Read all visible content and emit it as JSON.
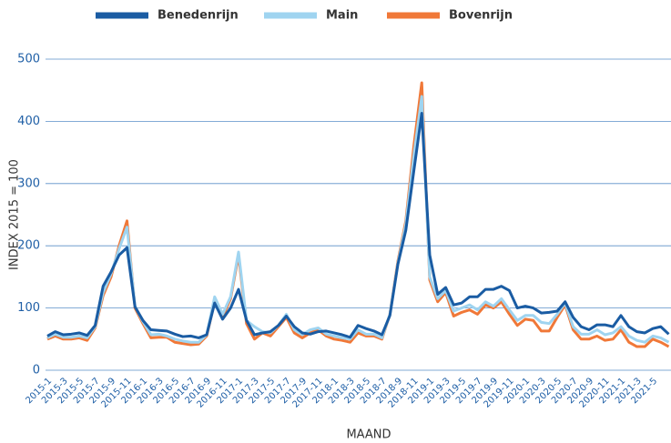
{
  "chart_data": {
    "type": "line",
    "x_label": "MAAND",
    "y_label": "INDEX 2015 = 100",
    "categories": [
      "2015-1",
      null,
      "2015-3",
      null,
      "2015-5",
      null,
      "2015-7",
      null,
      "2015-9",
      null,
      "2015-11",
      null,
      "2016-1",
      null,
      "2016-3",
      null,
      "2016-5",
      null,
      "2016-7",
      null,
      "2016-9",
      null,
      "2016-11",
      null,
      "2017-1",
      null,
      "2017-3",
      null,
      "2017-5",
      null,
      "2017-7",
      null,
      "2017-9",
      null,
      "2017-11",
      null,
      "2018-1",
      null,
      "2018-3",
      null,
      "2018-5",
      null,
      "2018-7",
      null,
      "2018-9",
      null,
      "2018-11",
      null,
      "2019-1",
      null,
      "2019-3",
      null,
      "2019-5",
      null,
      "2019-7",
      null,
      "2019-9",
      null,
      "2019-11",
      null,
      "2020-1",
      null,
      "2020-3",
      null,
      "2020-5",
      null,
      "2020-7",
      null,
      "2020-9",
      null,
      "2020-11",
      null,
      "2021-1",
      null,
      "2021-3",
      null,
      "2021-5",
      null,
      null
    ],
    "series": [
      {
        "name": "Benedenrijn",
        "color": "#1a5ca3",
        "values": [
          55,
          62,
          57,
          58,
          60,
          56,
          72,
          135,
          158,
          185,
          197,
          102,
          80,
          65,
          64,
          63,
          58,
          54,
          55,
          52,
          57,
          108,
          82,
          100,
          130,
          80,
          57,
          60,
          62,
          72,
          87,
          70,
          60,
          58,
          62,
          63,
          60,
          57,
          53,
          72,
          67,
          63,
          57,
          88,
          170,
          225,
          320,
          413,
          185,
          122,
          133,
          105,
          108,
          118,
          118,
          130,
          130,
          135,
          128,
          100,
          103,
          100,
          92,
          93,
          95,
          110,
          85,
          70,
          65,
          73,
          73,
          70,
          88,
          70,
          62,
          60,
          67,
          70,
          58
        ]
      },
      {
        "name": "Main",
        "color": "#9fd4f0",
        "values": [
          52,
          58,
          53,
          53,
          55,
          52,
          70,
          125,
          155,
          195,
          230,
          103,
          78,
          57,
          58,
          55,
          50,
          47,
          45,
          45,
          57,
          118,
          90,
          118,
          190,
          80,
          70,
          62,
          60,
          72,
          90,
          65,
          57,
          65,
          68,
          58,
          55,
          52,
          50,
          65,
          58,
          58,
          52,
          90,
          172,
          235,
          345,
          440,
          150,
          115,
          128,
          95,
          100,
          105,
          97,
          110,
          103,
          115,
          97,
          80,
          88,
          88,
          77,
          75,
          90,
          108,
          70,
          58,
          58,
          65,
          57,
          60,
          70,
          55,
          48,
          45,
          55,
          52,
          45
        ]
      },
      {
        "name": "Bovenrijn",
        "color": "#f07838",
        "values": [
          50,
          55,
          50,
          50,
          52,
          48,
          68,
          120,
          150,
          200,
          240,
          100,
          75,
          52,
          53,
          53,
          45,
          43,
          41,
          42,
          55,
          110,
          85,
          115,
          185,
          75,
          50,
          60,
          55,
          70,
          85,
          60,
          52,
          60,
          65,
          55,
          50,
          48,
          45,
          60,
          55,
          55,
          50,
          90,
          175,
          240,
          360,
          462,
          145,
          110,
          125,
          87,
          93,
          97,
          90,
          105,
          100,
          110,
          90,
          72,
          82,
          80,
          63,
          63,
          85,
          105,
          65,
          50,
          50,
          55,
          48,
          50,
          65,
          45,
          38,
          38,
          50,
          45,
          38
        ]
      }
    ],
    "ylim": [
      0,
      500
    ],
    "yticks": [
      0,
      100,
      200,
      300,
      400,
      500
    ],
    "grid": true,
    "legend": "top"
  }
}
